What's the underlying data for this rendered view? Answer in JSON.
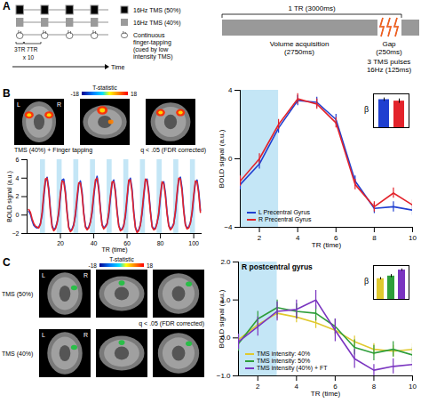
{
  "diagram": {
    "letter": "A",
    "rows": [
      {
        "label": "16Hz TMS (50%)",
        "style": "black"
      },
      {
        "label": "16Hz TMS (40%)",
        "style": "gray"
      },
      {
        "label": "Continuous finger-tapping (cued by low intensity TMS)",
        "style": "finger"
      }
    ],
    "on_label": "3TR",
    "off_label": "7TR",
    "repeat_label": "x 10",
    "axis_label": "Time",
    "tr_title": "1 TR (3000ms)",
    "acquisition_label": "Volume acquisition",
    "acquisition_duration": "(2750ms)",
    "gap_label": "Gap",
    "gap_duration": "(250ms)",
    "pulse_label": "3 TMS pulses",
    "pulse_rate": "16Hz (125ms)"
  },
  "brain_maps": [
    {
      "letter": "B",
      "conditions": [
        "TMS (40%) + Finger tapping"
      ],
      "colorbar": {
        "label": "T-statistic",
        "range": [
          -18,
          18
        ]
      },
      "threshold": "q < .05 (FDR corrected)",
      "left": "L",
      "right": "R"
    },
    {
      "letter": "C",
      "conditions": [
        "TMS (50%)",
        "TMS (40%)"
      ],
      "colorbar": {
        "label": "T-statistic",
        "range": [
          -18,
          18
        ]
      },
      "threshold": "q < .05 (FDR corrected)",
      "left": "L",
      "right": "R"
    }
  ],
  "chart_data": [
    {
      "type": "line",
      "xlabel": "TR (time)",
      "ylabel": "BOLD signal (a.u.)",
      "x": [
        1,
        2,
        3,
        4,
        5,
        6,
        7,
        8,
        9,
        10,
        11,
        12,
        13,
        14,
        15,
        16,
        17,
        18,
        19,
        20,
        21,
        22,
        23,
        24,
        25,
        26,
        27,
        28,
        29,
        30,
        31,
        32,
        33,
        34,
        35,
        36,
        37,
        38,
        39,
        40,
        41,
        42,
        43,
        44,
        45,
        46,
        47,
        48,
        49,
        50,
        51,
        52,
        53,
        54,
        55,
        56,
        57,
        58,
        59,
        60,
        61,
        62,
        63,
        64,
        65,
        66,
        67,
        68,
        69,
        70,
        71,
        72,
        73,
        74,
        75,
        76,
        77,
        78,
        79,
        80,
        81,
        82,
        83,
        84,
        85,
        86,
        87,
        88,
        89,
        90,
        91,
        92,
        93,
        94,
        95,
        96,
        97,
        98,
        99,
        100,
        101,
        102,
        103,
        104
      ],
      "series": [
        {
          "color": "#1f3fd0",
          "values": [
            0.4,
            0.1,
            -0.6,
            -1.1,
            -1.3,
            -1.4,
            -1.3,
            -0.9,
            0.0,
            1.9,
            3.6,
            4.1,
            2.9,
            0.6,
            -1.1,
            -1.6,
            -1.4,
            -0.8,
            0.1,
            2.1,
            3.8,
            3.9,
            2.6,
            0.4,
            -1.3,
            -1.7,
            -1.5,
            -1.0,
            -0.1,
            1.6,
            3.3,
            3.7,
            2.5,
            0.3,
            -1.2,
            -1.5,
            -1.3,
            -0.7,
            0.2,
            2.0,
            3.5,
            4.2,
            3.0,
            0.7,
            -1.0,
            -1.4,
            -1.2,
            -0.9,
            0.0,
            1.8,
            3.4,
            3.8,
            2.7,
            0.5,
            -1.1,
            -1.6,
            -1.5,
            -1.1,
            -0.2,
            1.7,
            3.6,
            4.0,
            2.8,
            0.4,
            -1.3,
            -1.8,
            -1.6,
            -1.0,
            0.1,
            2.0,
            3.7,
            3.9,
            2.6,
            0.5,
            -1.2,
            -1.5,
            -1.4,
            -0.8,
            0.0,
            1.9,
            3.4,
            3.6,
            2.4,
            0.3,
            -1.1,
            -1.5,
            -1.3,
            -0.9,
            0.2,
            2.1,
            3.8,
            4.1,
            2.9,
            0.6,
            -1.0,
            -1.4,
            -1.3,
            -0.8,
            0.1,
            1.9,
            3.5,
            3.8,
            2.6,
            0.5
          ]
        },
        {
          "color": "#e3232b",
          "values": [
            0.6,
            0.3,
            -0.4,
            -0.9,
            -1.2,
            -1.3,
            -1.4,
            -1.0,
            0.3,
            2.3,
            3.9,
            4.0,
            2.6,
            0.3,
            -1.3,
            -1.7,
            -1.5,
            -0.9,
            0.4,
            2.4,
            3.7,
            3.6,
            2.3,
            0.2,
            -1.4,
            -1.8,
            -1.6,
            -1.1,
            0.2,
            2.0,
            3.5,
            3.5,
            2.2,
            0.1,
            -1.3,
            -1.6,
            -1.4,
            -0.8,
            0.5,
            2.3,
            3.8,
            4.0,
            2.7,
            0.5,
            -1.1,
            -1.5,
            -1.3,
            -1.0,
            0.3,
            2.1,
            3.6,
            3.6,
            2.4,
            0.3,
            -1.2,
            -1.7,
            -1.6,
            -1.2,
            0.1,
            2.0,
            3.8,
            3.8,
            2.5,
            0.2,
            -1.4,
            -1.9,
            -1.7,
            -1.1,
            0.4,
            2.3,
            3.9,
            3.7,
            2.3,
            0.3,
            -1.3,
            -1.6,
            -1.5,
            -0.9,
            0.3,
            2.2,
            3.6,
            3.4,
            2.1,
            0.1,
            -1.2,
            -1.6,
            -1.4,
            -1.0,
            0.5,
            2.4,
            4.0,
            3.9,
            2.6,
            0.4,
            -1.1,
            -1.5,
            -1.4,
            -0.9,
            0.4,
            2.2,
            3.7,
            3.6,
            2.3,
            0.3
          ]
        }
      ],
      "shaded": [
        [
          8,
          11
        ],
        [
          18,
          21
        ],
        [
          28,
          31
        ],
        [
          38,
          41
        ],
        [
          48,
          51
        ],
        [
          58,
          61
        ],
        [
          68,
          71
        ],
        [
          78,
          81
        ],
        [
          88,
          91
        ],
        [
          98,
          101
        ]
      ],
      "xlim": [
        0,
        105
      ],
      "xticks": [
        20,
        40,
        60,
        80,
        100
      ],
      "ylim": [
        -2,
        6
      ],
      "yticks": [
        -2,
        0,
        2,
        4,
        6
      ]
    },
    {
      "type": "line",
      "xlabel": "TR (time)",
      "ylabel": "BOLD signal (a.u.)",
      "legend": "lower left",
      "x": [
        1,
        2,
        3,
        4,
        5,
        6,
        7,
        8,
        9,
        10
      ],
      "series": [
        {
          "name": "L Precentral Gyrus",
          "color": "#1f3fd0",
          "values": [
            -1.5,
            -0.3,
            1.8,
            3.4,
            3.3,
            2.3,
            -1.3,
            -2.9,
            -2.8,
            -3.0
          ],
          "errors": [
            0.3,
            0.3,
            0.3,
            0.3,
            0.3,
            0.3,
            0.3,
            0.3,
            0.3,
            0.3
          ]
        },
        {
          "name": "R Precentral Gyrus",
          "color": "#e3232b",
          "values": [
            -1.3,
            0.0,
            2.0,
            3.5,
            3.2,
            2.1,
            -1.5,
            -2.8,
            -2.0,
            -2.7
          ],
          "errors": [
            0.3,
            0.3,
            0.3,
            0.3,
            0.3,
            0.3,
            0.3,
            0.3,
            0.3,
            0.3
          ]
        }
      ],
      "shaded": [
        [
          1,
          3
        ]
      ],
      "xlim": [
        1,
        10
      ],
      "xticks": [
        2,
        4,
        6,
        8,
        10
      ],
      "ylim": [
        -4,
        4
      ],
      "yticks": [
        -4,
        0,
        4
      ]
    },
    {
      "type": "bar",
      "ylabel": "β",
      "categories": [
        null,
        null
      ],
      "values": [
        5.8,
        5.5
      ],
      "errors": [
        0.35,
        0.45
      ],
      "colors": [
        "#1f3fd0",
        "#e3232b"
      ],
      "ylim": [
        0,
        7
      ],
      "tick_labels": false
    },
    {
      "type": "line",
      "title": "R postcentral gyrus",
      "xlabel": "TR (time)",
      "ylabel": "BOLD signal (a.u.)",
      "legend": "lower left",
      "x": [
        1,
        2,
        3,
        4,
        5,
        6,
        7,
        8,
        9,
        10
      ],
      "series": [
        {
          "name": "TMS intensity: 40%",
          "color": "#e0c92e",
          "values": [
            -0.05,
            0.35,
            0.65,
            0.55,
            0.4,
            0.2,
            -0.1,
            -0.3,
            -0.35,
            -0.3
          ],
          "errors": [
            0.15,
            0.15,
            0.15,
            0.15,
            0.15,
            0.15,
            0.15,
            0.15,
            0.15,
            0.15
          ]
        },
        {
          "name": "TMS intensity: 50%",
          "color": "#2e9e3a",
          "values": [
            -0.15,
            0.5,
            0.8,
            0.7,
            0.65,
            0.3,
            -0.25,
            -0.4,
            -0.3,
            -0.45
          ],
          "errors": [
            0.2,
            0.2,
            0.2,
            0.2,
            0.2,
            0.2,
            0.2,
            0.2,
            0.2,
            0.2
          ]
        },
        {
          "name": "TMS intensity (40%) + FT",
          "color": "#7a35c0",
          "values": [
            -0.1,
            0.3,
            0.7,
            0.75,
            1.0,
            0.2,
            -0.55,
            -0.85,
            -0.75,
            -0.7
          ],
          "errors": [
            0.2,
            0.25,
            0.25,
            0.25,
            0.25,
            0.3,
            0.25,
            0.15,
            0.2,
            0.2
          ]
        }
      ],
      "shaded": [
        [
          1,
          3
        ]
      ],
      "xlim": [
        1,
        10
      ],
      "xticks": [
        2,
        4,
        6,
        8,
        10
      ],
      "ylim": [
        -1,
        2
      ],
      "yticks": [
        -1,
        0,
        1,
        2
      ]
    },
    {
      "type": "bar",
      "ylabel": "β",
      "categories": [
        null,
        null,
        null
      ],
      "values": [
        0.55,
        0.62,
        0.78
      ],
      "errors": [
        0.03,
        0.04,
        0.03
      ],
      "colors": [
        "#e0c92e",
        "#2e9e3a",
        "#7a35c0"
      ],
      "ylim": [
        0,
        0.9
      ],
      "tick_labels": false
    }
  ]
}
